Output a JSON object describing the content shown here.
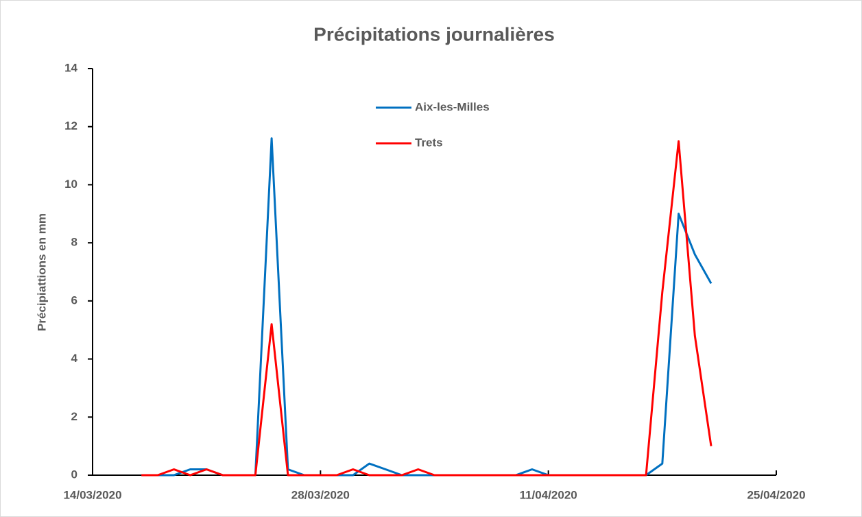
{
  "chart_data": {
    "type": "line",
    "title": "Précipitations journalières",
    "y_label": "Précipiattions en mm",
    "x": [
      "17/03/2020",
      "18/03/2020",
      "19/03/2020",
      "20/03/2020",
      "21/03/2020",
      "22/03/2020",
      "23/03/2020",
      "24/03/2020",
      "25/03/2020",
      "26/03/2020",
      "27/03/2020",
      "28/03/2020",
      "29/03/2020",
      "30/03/2020",
      "31/03/2020",
      "01/04/2020",
      "02/04/2020",
      "03/04/2020",
      "04/04/2020",
      "05/04/2020",
      "06/04/2020",
      "07/04/2020",
      "08/04/2020",
      "09/04/2020",
      "10/04/2020",
      "11/04/2020",
      "12/04/2020",
      "13/04/2020",
      "14/04/2020",
      "15/04/2020",
      "16/04/2020",
      "17/04/2020",
      "18/04/2020",
      "19/04/2020",
      "20/04/2020",
      "21/04/2020"
    ],
    "series": [
      {
        "name": "Aix-les-Milles",
        "color": "#0070c0",
        "values": [
          0,
          0,
          0,
          0.2,
          0.2,
          0,
          0,
          0,
          11.6,
          0.2,
          0,
          0,
          0,
          0,
          0.4,
          0.2,
          0,
          0,
          0,
          0,
          0,
          0,
          0,
          0,
          0.2,
          0,
          0,
          0,
          0,
          0,
          0,
          0,
          0.4,
          9,
          7.6,
          6.6
        ]
      },
      {
        "name": "Trets",
        "color": "#ff0000",
        "values": [
          0,
          0,
          0.2,
          0,
          0.2,
          0,
          0,
          0,
          5.2,
          0,
          0,
          0,
          0,
          0.2,
          0,
          0,
          0,
          0.2,
          0,
          0,
          0,
          0,
          0,
          0,
          0,
          0,
          0,
          0,
          0,
          0,
          0,
          0,
          6.3,
          11.5,
          4.8,
          1
        ]
      }
    ],
    "xlim": [
      "14/03/2020",
      "25/04/2020"
    ],
    "xticks": [
      "14/03/2020",
      "28/03/2020",
      "11/04/2020",
      "25/04/2020"
    ],
    "ylim": [
      0,
      14
    ],
    "yticks": [
      0,
      2,
      4,
      6,
      8,
      10,
      12,
      14
    ],
    "grid": false,
    "legend": "top"
  }
}
